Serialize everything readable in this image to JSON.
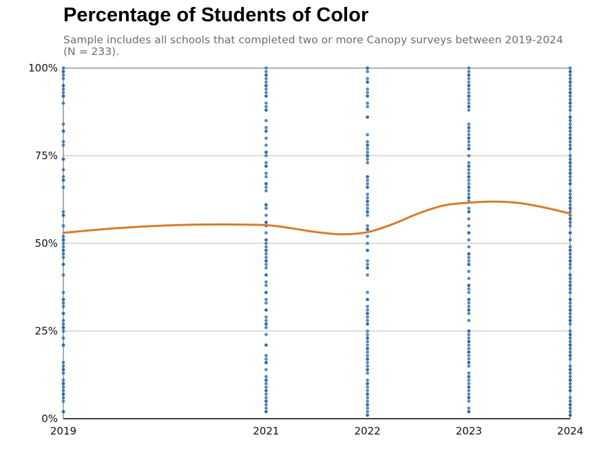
{
  "chart_data": {
    "type": "scatter",
    "title": "Percentage of Students of Color",
    "subtitle": "Sample includes all schools that completed two or more Canopy surveys between 2019-2024 (N = 233).",
    "xlabel": "",
    "ylabel": "",
    "x_ticks": [
      "2019",
      "2021",
      "2022",
      "2023",
      "2024"
    ],
    "y_ticks": [
      "0%",
      "25%",
      "50%",
      "75%",
      "100%"
    ],
    "xlim": [
      2019,
      2024
    ],
    "ylim": [
      0,
      100
    ],
    "grid": "horizontal",
    "colors": {
      "points": "#1f65a8",
      "trend": "#d97a2b",
      "grid": "#c8c8c8",
      "axis": "#000000"
    },
    "points": [
      {
        "x": 2019,
        "y": [
          2,
          5,
          6,
          7,
          8,
          9,
          10,
          11,
          13,
          14,
          15,
          16,
          21,
          23,
          25,
          26,
          27,
          28,
          30,
          32,
          33,
          34,
          36,
          41,
          44,
          46,
          47,
          48,
          49,
          50,
          51,
          52,
          55,
          58,
          59,
          66,
          68,
          69,
          71,
          74,
          78,
          79,
          82,
          84,
          90,
          92,
          93,
          94,
          95,
          97,
          98,
          99,
          100
        ]
      },
      {
        "x": 2021,
        "y": [
          2,
          3,
          4,
          5,
          6,
          7,
          8,
          9,
          10,
          11,
          12,
          14,
          16,
          17,
          18,
          21,
          24,
          26,
          27,
          28,
          29,
          31,
          33,
          34,
          36,
          38,
          39,
          41,
          43,
          44,
          45,
          46,
          47,
          48,
          49,
          50,
          51,
          53,
          55,
          56,
          58,
          60,
          61,
          65,
          66,
          67,
          69,
          70,
          72,
          73,
          75,
          76,
          78,
          80,
          82,
          83,
          85,
          88,
          89,
          90,
          92,
          93,
          94,
          95,
          96,
          97,
          98,
          99,
          100
        ]
      },
      {
        "x": 2022,
        "y": [
          1,
          2,
          3,
          4,
          5,
          6,
          7,
          8,
          9,
          10,
          11,
          13,
          14,
          15,
          16,
          17,
          18,
          19,
          20,
          21,
          22,
          23,
          24,
          25,
          27,
          28,
          29,
          30,
          31,
          32,
          34,
          36,
          41,
          43,
          44,
          45,
          48,
          50,
          52,
          54,
          55,
          58,
          59,
          60,
          61,
          62,
          63,
          64,
          66,
          67,
          68,
          69,
          73,
          74,
          75,
          76,
          77,
          78,
          79,
          81,
          86,
          89,
          90,
          92,
          93,
          94,
          96,
          97,
          99,
          100
        ]
      },
      {
        "x": 2023,
        "y": [
          2,
          3,
          5,
          6,
          7,
          8,
          9,
          10,
          11,
          12,
          13,
          15,
          16,
          17,
          18,
          19,
          20,
          21,
          22,
          23,
          24,
          25,
          28,
          30,
          31,
          32,
          33,
          34,
          36,
          37,
          38,
          40,
          42,
          44,
          45,
          46,
          47,
          49,
          51,
          53,
          55,
          57,
          59,
          60,
          62,
          63,
          64,
          65,
          66,
          67,
          68,
          69,
          70,
          71,
          72,
          73,
          75,
          77,
          78,
          79,
          80,
          81,
          82,
          83,
          84,
          88,
          89,
          90,
          91,
          92,
          93,
          94,
          95,
          96,
          97,
          98,
          99,
          100
        ]
      },
      {
        "x": 2024,
        "y": [
          1,
          2,
          3,
          4,
          5,
          6,
          8,
          9,
          10,
          11,
          12,
          13,
          14,
          15,
          17,
          18,
          19,
          20,
          21,
          22,
          23,
          24,
          25,
          27,
          28,
          29,
          30,
          31,
          32,
          33,
          34,
          36,
          37,
          38,
          39,
          40,
          41,
          43,
          44,
          45,
          46,
          47,
          48,
          49,
          51,
          53,
          55,
          56,
          57,
          58,
          59,
          60,
          61,
          62,
          63,
          64,
          65,
          67,
          68,
          69,
          70,
          71,
          72,
          73,
          74,
          75,
          77,
          78,
          79,
          80,
          81,
          82,
          83,
          84,
          85,
          86,
          88,
          89,
          90,
          91,
          92,
          93,
          94,
          95,
          96,
          97,
          98,
          99,
          100
        ]
      }
    ],
    "trend": [
      {
        "x": 2019,
        "y": 53.0
      },
      {
        "x": 2019.5,
        "y": 54.3
      },
      {
        "x": 2020,
        "y": 55.1
      },
      {
        "x": 2020.5,
        "y": 55.4
      },
      {
        "x": 2021,
        "y": 55.2
      },
      {
        "x": 2021.25,
        "y": 54.3
      },
      {
        "x": 2021.5,
        "y": 53.2
      },
      {
        "x": 2021.75,
        "y": 52.6
      },
      {
        "x": 2022,
        "y": 53.2
      },
      {
        "x": 2022.25,
        "y": 55.5
      },
      {
        "x": 2022.5,
        "y": 58.5
      },
      {
        "x": 2022.75,
        "y": 60.8
      },
      {
        "x": 2023,
        "y": 61.6
      },
      {
        "x": 2023.25,
        "y": 61.9
      },
      {
        "x": 2023.5,
        "y": 61.5
      },
      {
        "x": 2023.75,
        "y": 60.2
      },
      {
        "x": 2024,
        "y": 58.5
      }
    ]
  }
}
